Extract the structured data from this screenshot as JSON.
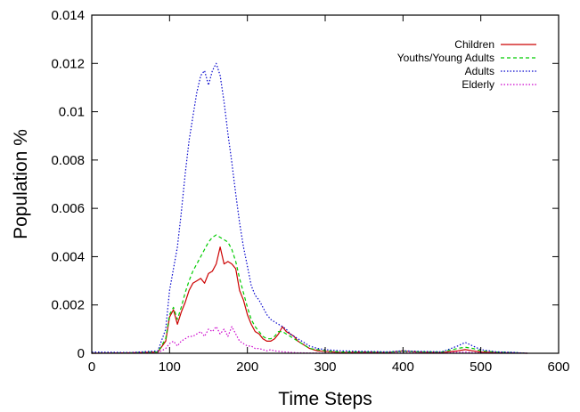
{
  "chart_data": {
    "type": "line",
    "title": "",
    "xlabel": "Time Steps",
    "ylabel": "Population %",
    "xlim": [
      0,
      600
    ],
    "ylim": [
      0,
      0.014
    ],
    "x_ticks": [
      0,
      100,
      200,
      300,
      400,
      500,
      600
    ],
    "y_ticks": [
      0,
      0.002,
      0.004,
      0.006,
      0.008,
      0.01,
      0.012,
      0.014
    ],
    "x_tick_labels": [
      "0",
      "100",
      "200",
      "300",
      "400",
      "500",
      "600"
    ],
    "y_tick_labels": [
      "0",
      "0.002",
      "0.004",
      "0.006",
      "0.008",
      "0.01",
      "0.012",
      "0.014"
    ],
    "grid": false,
    "legend_position": "top-right",
    "series": [
      {
        "name": "Children",
        "color": "#cc0000",
        "dash": "solid",
        "x": [
          0,
          50,
          85,
          95,
          100,
          105,
          110,
          115,
          120,
          125,
          130,
          135,
          140,
          145,
          150,
          155,
          160,
          165,
          170,
          175,
          180,
          185,
          190,
          195,
          200,
          205,
          210,
          215,
          220,
          225,
          230,
          235,
          240,
          245,
          250,
          255,
          260,
          265,
          270,
          280,
          290,
          300,
          320,
          350,
          380,
          400,
          420,
          450,
          470,
          480,
          490,
          500,
          520,
          540,
          560
        ],
        "y": [
          0,
          2e-05,
          5e-05,
          0.0005,
          0.0015,
          0.0018,
          0.0012,
          0.0017,
          0.0021,
          0.0026,
          0.0029,
          0.003,
          0.0031,
          0.0029,
          0.0033,
          0.0034,
          0.0037,
          0.0044,
          0.0037,
          0.0038,
          0.0037,
          0.0035,
          0.0026,
          0.0022,
          0.0016,
          0.0012,
          0.0009,
          0.0008,
          0.0006,
          0.0005,
          0.0005,
          0.0006,
          0.0008,
          0.0011,
          0.0009,
          0.0008,
          0.0007,
          0.0005,
          0.0004,
          0.0002,
          0.0001,
          8e-05,
          3e-05,
          5e-05,
          3e-05,
          0.0001,
          5e-05,
          3e-05,
          0.0001,
          0.00015,
          0.0001,
          5e-05,
          3e-05,
          2e-05,
          0.0
        ]
      },
      {
        "name": "Youths/Young Adults",
        "color": "#00cc00",
        "dash": "dashed",
        "x": [
          0,
          50,
          85,
          95,
          100,
          105,
          110,
          115,
          120,
          125,
          130,
          135,
          140,
          145,
          150,
          155,
          160,
          165,
          170,
          175,
          180,
          185,
          190,
          195,
          200,
          205,
          210,
          215,
          220,
          225,
          230,
          235,
          240,
          245,
          250,
          255,
          260,
          265,
          270,
          280,
          290,
          300,
          320,
          350,
          380,
          400,
          420,
          450,
          470,
          480,
          490,
          500,
          520,
          540,
          560
        ],
        "y": [
          0,
          2e-05,
          5e-05,
          0.0006,
          0.0016,
          0.0019,
          0.0014,
          0.0019,
          0.0025,
          0.003,
          0.0034,
          0.0037,
          0.004,
          0.0043,
          0.0046,
          0.0048,
          0.0049,
          0.0048,
          0.0047,
          0.0046,
          0.0043,
          0.0038,
          0.0031,
          0.0025,
          0.0019,
          0.0014,
          0.0011,
          0.0009,
          0.0007,
          0.0006,
          0.0006,
          0.0007,
          0.0009,
          0.0009,
          0.0008,
          0.0007,
          0.0006,
          0.0005,
          0.0004,
          0.0002,
          0.00015,
          0.0001,
          5e-05,
          5e-05,
          4e-05,
          8e-05,
          6e-05,
          5e-05,
          0.0002,
          0.00025,
          0.0002,
          0.0001,
          5e-05,
          3e-05,
          0.0
        ]
      },
      {
        "name": "Adults",
        "color": "#0000cc",
        "dash": "dotted",
        "x": [
          0,
          50,
          85,
          95,
          100,
          105,
          110,
          115,
          120,
          125,
          130,
          135,
          140,
          145,
          150,
          155,
          160,
          165,
          170,
          175,
          180,
          185,
          190,
          195,
          200,
          205,
          210,
          215,
          220,
          225,
          230,
          235,
          240,
          245,
          250,
          255,
          260,
          265,
          270,
          280,
          290,
          300,
          320,
          350,
          380,
          400,
          420,
          450,
          470,
          480,
          490,
          500,
          520,
          540,
          560
        ],
        "y": [
          5e-05,
          3e-05,
          0.0001,
          0.001,
          0.0026,
          0.0035,
          0.0044,
          0.0058,
          0.0074,
          0.0088,
          0.0098,
          0.0108,
          0.0115,
          0.0117,
          0.0111,
          0.0117,
          0.012,
          0.0115,
          0.0104,
          0.0091,
          0.0079,
          0.0066,
          0.0054,
          0.0044,
          0.0036,
          0.0028,
          0.0024,
          0.0022,
          0.0019,
          0.0016,
          0.0014,
          0.0013,
          0.0012,
          0.0011,
          0.001,
          0.0008,
          0.0007,
          0.0006,
          0.0005,
          0.0003,
          0.0002,
          0.00015,
          0.0001,
          8e-05,
          6e-05,
          0.0001,
          8e-05,
          6e-05,
          0.0003,
          0.00045,
          0.0003,
          0.00015,
          6e-05,
          4e-05,
          0.0
        ]
      },
      {
        "name": "Elderly",
        "color": "#cc00cc",
        "dash": "dotted",
        "x": [
          0,
          50,
          85,
          95,
          100,
          105,
          110,
          115,
          120,
          125,
          130,
          135,
          140,
          145,
          150,
          155,
          160,
          165,
          170,
          175,
          180,
          185,
          190,
          195,
          200,
          205,
          210,
          215,
          220,
          225,
          230,
          235,
          240,
          245,
          250,
          255,
          260,
          265,
          270,
          280,
          290,
          300,
          320,
          350,
          380,
          400,
          420,
          450,
          470,
          480,
          490,
          500,
          520,
          540,
          560
        ],
        "y": [
          0,
          1e-05,
          2e-05,
          0.0002,
          0.0004,
          0.0005,
          0.0003,
          0.0005,
          0.0006,
          0.0007,
          0.0007,
          0.0008,
          0.0009,
          0.0007,
          0.001,
          0.0009,
          0.0011,
          0.0008,
          0.001,
          0.0007,
          0.0011,
          0.0008,
          0.0005,
          0.0004,
          0.0003,
          0.0003,
          0.0002,
          0.0002,
          0.00015,
          0.0001,
          0.00015,
          0.0001,
          8e-05,
          6e-05,
          5e-05,
          4e-05,
          3e-05,
          2e-05,
          2e-05,
          1e-05,
          1e-05,
          1e-05,
          1e-05,
          2e-05,
          1e-05,
          3e-05,
          2e-05,
          1e-05,
          4e-05,
          5e-05,
          3e-05,
          2e-05,
          1e-05,
          1e-05,
          0.0
        ]
      }
    ]
  }
}
